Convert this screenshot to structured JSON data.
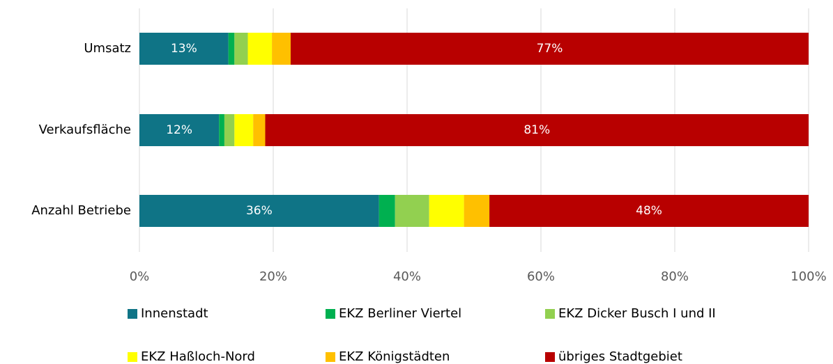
{
  "chart_data": {
    "type": "stacked_barh",
    "categories": [
      "Umsatz",
      "Verkaufsfläche",
      "Anzahl Betriebe"
    ],
    "series": [
      {
        "name": "Innenstadt",
        "color": "#0f7486",
        "values": [
          13.3,
          11.9,
          35.8
        ],
        "value_labels": [
          "13%",
          "12%",
          "36%"
        ]
      },
      {
        "name": "EKZ Berliner Viertel",
        "color": "#00b050",
        "values": [
          0.9,
          0.8,
          2.4
        ]
      },
      {
        "name": "EKZ Dicker Busch I und II",
        "color": "#92d050",
        "values": [
          2.0,
          1.5,
          5.1
        ]
      },
      {
        "name": "EKZ Haßloch-Nord",
        "color": "#ffff00",
        "values": [
          3.6,
          2.8,
          5.2
        ]
      },
      {
        "name": "EKZ Königstädten",
        "color": "#ffc000",
        "values": [
          2.8,
          1.8,
          3.8
        ]
      },
      {
        "name": "übriges Stadtgebiet",
        "color": "#b80000",
        "values": [
          77.4,
          81.2,
          47.7
        ],
        "value_labels": [
          "77%",
          "81%",
          "48%"
        ]
      }
    ],
    "xlim": [
      0,
      100
    ],
    "xticks": [
      {
        "value": 0,
        "label": "0%"
      },
      {
        "value": 20,
        "label": "20%"
      },
      {
        "value": 40,
        "label": "40%"
      },
      {
        "value": 60,
        "label": "60%"
      },
      {
        "value": 80,
        "label": "80%"
      },
      {
        "value": 100,
        "label": "100%"
      }
    ],
    "grid": true,
    "legend": "bottom"
  }
}
